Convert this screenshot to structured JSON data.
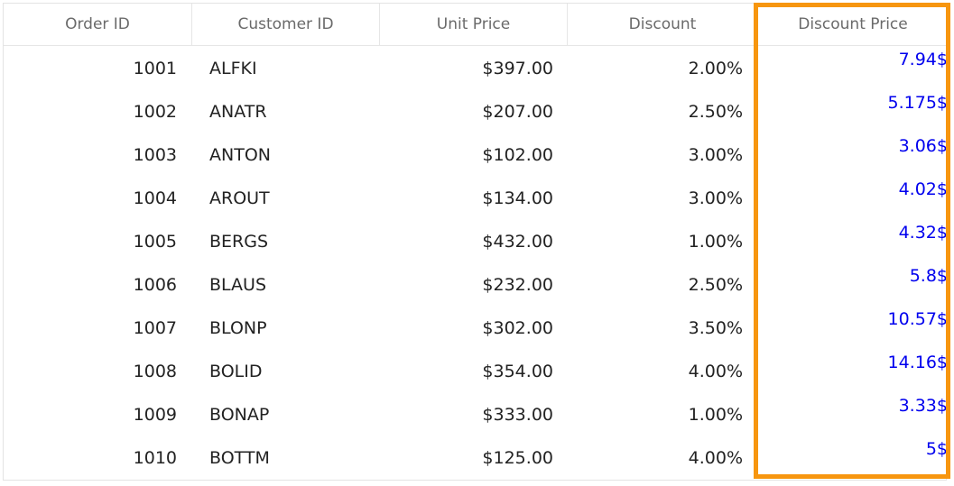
{
  "columns": {
    "order_id": "Order ID",
    "customer_id": "Customer ID",
    "unit_price": "Unit Price",
    "discount": "Discount",
    "discount_price": "Discount Price"
  },
  "rows": [
    {
      "order_id": "1001",
      "customer_id": "ALFKI",
      "unit_price": "$397.00",
      "discount": "2.00%",
      "discount_price": "7.94$"
    },
    {
      "order_id": "1002",
      "customer_id": "ANATR",
      "unit_price": "$207.00",
      "discount": "2.50%",
      "discount_price": "5.175$"
    },
    {
      "order_id": "1003",
      "customer_id": "ANTON",
      "unit_price": "$102.00",
      "discount": "3.00%",
      "discount_price": "3.06$"
    },
    {
      "order_id": "1004",
      "customer_id": "AROUT",
      "unit_price": "$134.00",
      "discount": "3.00%",
      "discount_price": "4.02$"
    },
    {
      "order_id": "1005",
      "customer_id": "BERGS",
      "unit_price": "$432.00",
      "discount": "1.00%",
      "discount_price": "4.32$"
    },
    {
      "order_id": "1006",
      "customer_id": "BLAUS",
      "unit_price": "$232.00",
      "discount": "2.50%",
      "discount_price": "5.8$"
    },
    {
      "order_id": "1007",
      "customer_id": "BLONP",
      "unit_price": "$302.00",
      "discount": "3.50%",
      "discount_price": "10.57$"
    },
    {
      "order_id": "1008",
      "customer_id": "BOLID",
      "unit_price": "$354.00",
      "discount": "4.00%",
      "discount_price": "14.16$"
    },
    {
      "order_id": "1009",
      "customer_id": "BONAP",
      "unit_price": "$333.00",
      "discount": "1.00%",
      "discount_price": "3.33$"
    },
    {
      "order_id": "1010",
      "customer_id": "BOTTM",
      "unit_price": "$125.00",
      "discount": "4.00%",
      "discount_price": "5$"
    }
  ],
  "colors": {
    "highlight_border": "#f7960f",
    "discount_price_text": "#0000ee"
  }
}
